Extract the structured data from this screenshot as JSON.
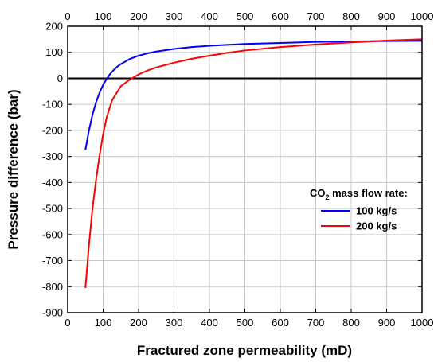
{
  "chart_data": {
    "type": "line",
    "title": "",
    "xlabel": "Fractured zone permeability (mD)",
    "ylabel": "Pressure difference (bar)",
    "xlim": [
      0,
      1000
    ],
    "ylim": [
      -900,
      200
    ],
    "x_ticks": [
      "0",
      "100",
      "200",
      "300",
      "400",
      "500",
      "600",
      "700",
      "800",
      "900",
      "1000"
    ],
    "y_ticks": [
      "200",
      "100",
      "0",
      "-100",
      "-200",
      "-300",
      "-400",
      "-500",
      "-600",
      "-700",
      "-800",
      "-900"
    ],
    "grid": true,
    "reference_line_y": 0,
    "legend": {
      "title_main": "CO",
      "title_sub": "2",
      "title_rest": " mass flow rate:",
      "placement": "right"
    },
    "series": [
      {
        "name": "100 kg/s",
        "color": "#0000ff",
        "x": [
          50,
          60,
          70,
          80,
          90,
          100,
          110,
          120,
          130,
          140,
          150,
          175,
          200,
          225,
          250,
          300,
          350,
          400,
          500,
          600,
          700,
          800,
          900,
          1000
        ],
        "y": [
          -275,
          -200,
          -140,
          -92,
          -55,
          -25,
          -2,
          17,
          32,
          45,
          55,
          74,
          87,
          96,
          103,
          113,
          120,
          125,
          132,
          136,
          140,
          142,
          143,
          144
        ]
      },
      {
        "name": "200 kg/s",
        "color": "#ff0000",
        "x": [
          50,
          60,
          70,
          80,
          90,
          100,
          110,
          125,
          150,
          175,
          200,
          225,
          250,
          300,
          350,
          400,
          450,
          500,
          600,
          700,
          800,
          900,
          1000
        ],
        "y": [
          -805,
          -640,
          -500,
          -390,
          -295,
          -215,
          -150,
          -85,
          -30,
          -5,
          15,
          30,
          42,
          60,
          75,
          87,
          98,
          107,
          120,
          130,
          138,
          145,
          150
        ]
      }
    ]
  }
}
